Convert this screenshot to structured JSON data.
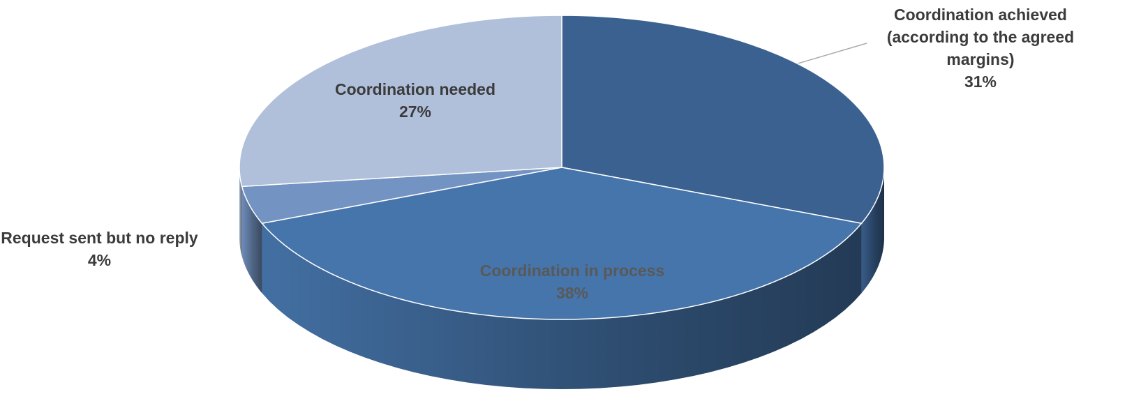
{
  "chart_data": {
    "type": "pie3d",
    "categories": [
      "Coordination achieved (according to the agreed margins)",
      "Coordination in process",
      "Request sent but no reply",
      "Coordination needed"
    ],
    "values": [
      31,
      38,
      4,
      27
    ],
    "value_labels": [
      "31%",
      "38%",
      "4%",
      "27%"
    ],
    "colors": [
      "#3a6190",
      "#4675ab",
      "#7394c2",
      "#b0c0db"
    ]
  }
}
